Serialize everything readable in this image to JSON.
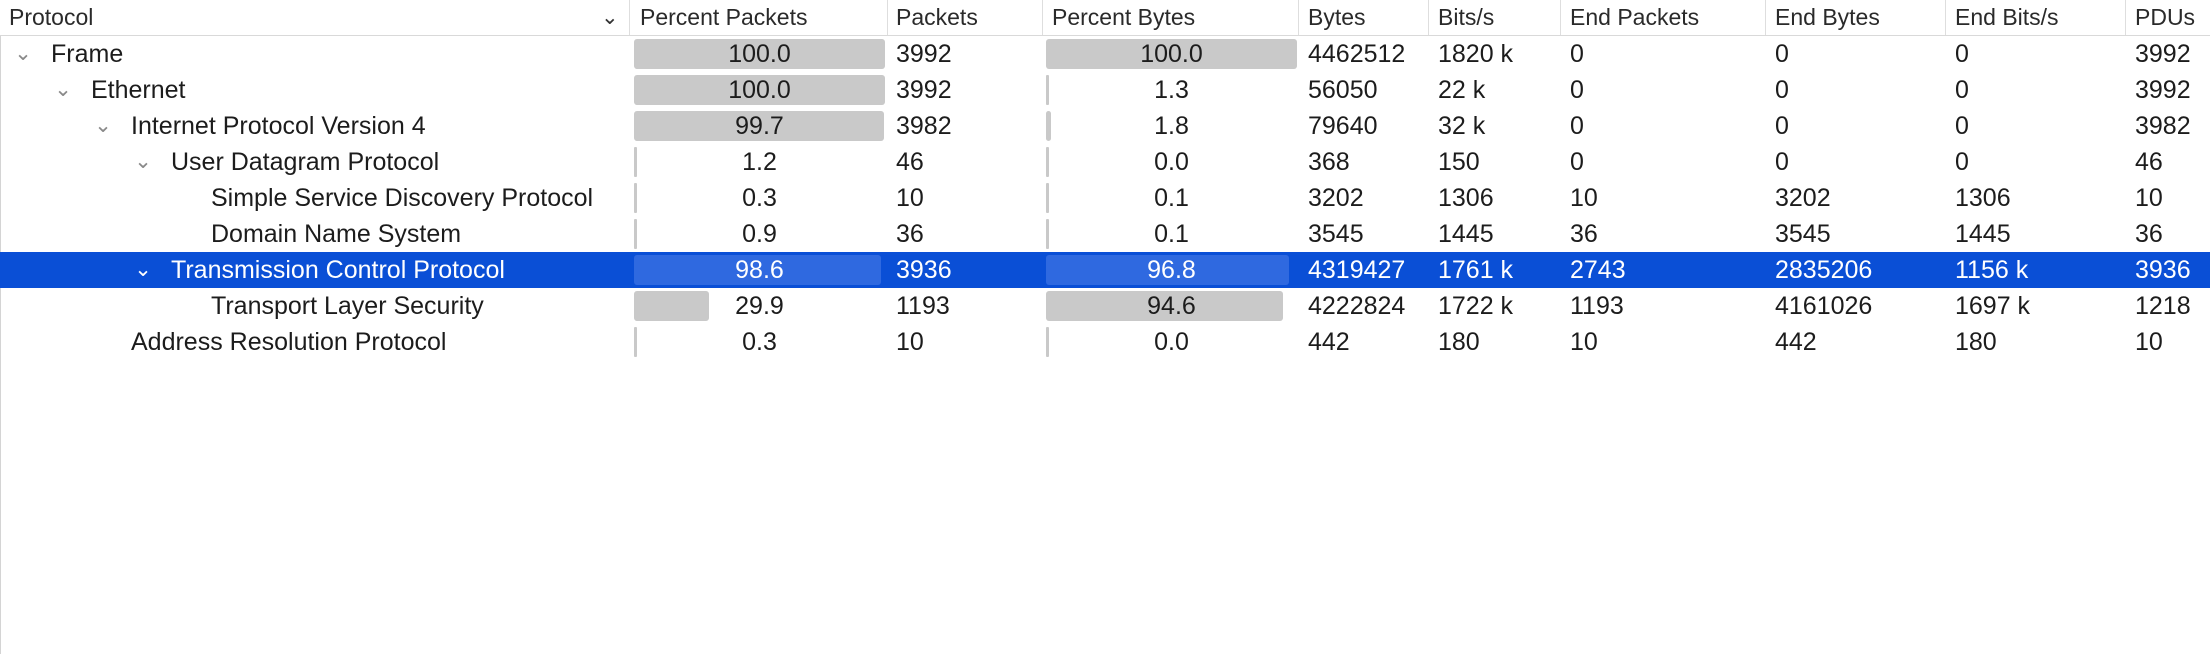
{
  "columns": {
    "protocol": "Protocol",
    "percent_packets": "Percent Packets",
    "packets": "Packets",
    "percent_bytes": "Percent Bytes",
    "bytes": "Bytes",
    "bits_s": "Bits/s",
    "end_packets": "End Packets",
    "end_bytes": "End Bytes",
    "end_bits_s": "End Bits/s",
    "pdus": "PDUs"
  },
  "rows": [
    {
      "protocol": "Frame",
      "percent_packets": "100.0",
      "packets": "3992",
      "percent_bytes": "100.0",
      "bytes": "4462512",
      "bits_s": "1820 k",
      "end_packets": "0",
      "end_bytes": "0",
      "end_bits_s": "0",
      "pdus": "3992",
      "expanded": true,
      "selected": false
    },
    {
      "protocol": "Ethernet",
      "percent_packets": "100.0",
      "packets": "3992",
      "percent_bytes": "1.3",
      "bytes": "56050",
      "bits_s": "22 k",
      "end_packets": "0",
      "end_bytes": "0",
      "end_bits_s": "0",
      "pdus": "3992",
      "expanded": true,
      "selected": false
    },
    {
      "protocol": "Internet Protocol Version 4",
      "percent_packets": "99.7",
      "packets": "3982",
      "percent_bytes": "1.8",
      "bytes": "79640",
      "bits_s": "32 k",
      "end_packets": "0",
      "end_bytes": "0",
      "end_bits_s": "0",
      "pdus": "3982",
      "expanded": true,
      "selected": false
    },
    {
      "protocol": "User Datagram Protocol",
      "percent_packets": "1.2",
      "packets": "46",
      "percent_bytes": "0.0",
      "bytes": "368",
      "bits_s": "150",
      "end_packets": "0",
      "end_bytes": "0",
      "end_bits_s": "0",
      "pdus": "46",
      "expanded": true,
      "selected": false
    },
    {
      "protocol": "Simple Service Discovery Protocol",
      "percent_packets": "0.3",
      "packets": "10",
      "percent_bytes": "0.1",
      "bytes": "3202",
      "bits_s": "1306",
      "end_packets": "10",
      "end_bytes": "3202",
      "end_bits_s": "1306",
      "pdus": "10",
      "selected": false
    },
    {
      "protocol": "Domain Name System",
      "percent_packets": "0.9",
      "packets": "36",
      "percent_bytes": "0.1",
      "bytes": "3545",
      "bits_s": "1445",
      "end_packets": "36",
      "end_bytes": "3545",
      "end_bits_s": "1445",
      "pdus": "36",
      "selected": false
    },
    {
      "protocol": "Transmission Control Protocol",
      "percent_packets": "98.6",
      "packets": "3936",
      "percent_bytes": "96.8",
      "bytes": "4319427",
      "bits_s": "1761 k",
      "end_packets": "2743",
      "end_bytes": "2835206",
      "end_bits_s": "1156 k",
      "pdus": "3936",
      "expanded": true,
      "selected": true
    },
    {
      "protocol": "Transport Layer Security",
      "percent_packets": "29.9",
      "packets": "1193",
      "percent_bytes": "94.6",
      "bytes": "4222824",
      "bits_s": "1722 k",
      "end_packets": "1193",
      "end_bytes": "4161026",
      "end_bits_s": "1697 k",
      "pdus": "1218",
      "selected": false
    },
    {
      "protocol": "Address Resolution Protocol",
      "percent_packets": "0.3",
      "packets": "10",
      "percent_bytes": "0.0",
      "bytes": "442",
      "bits_s": "180",
      "end_packets": "10",
      "end_bytes": "442",
      "end_bits_s": "180",
      "pdus": "10",
      "selected": false
    }
  ],
  "colors": {
    "selection": "#0a4fd6",
    "bar": "#c9c9c9",
    "bar_selected": "#2f69e0"
  },
  "icons": {
    "expand": "chevron-down-icon",
    "sort": "chevron-down-icon"
  }
}
